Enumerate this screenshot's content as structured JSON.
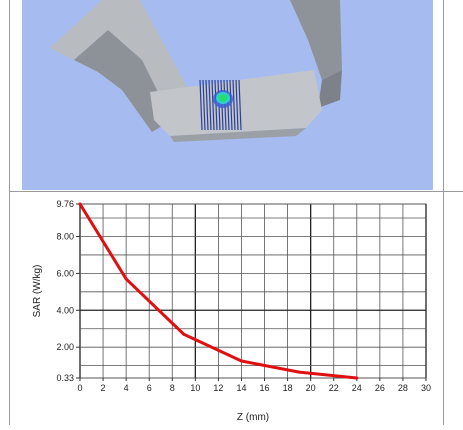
{
  "view3d": {
    "background": "#a6bbef",
    "phantom_color": "#a9adb3",
    "hotspot_colors": [
      "#22e066",
      "#2fd0c8",
      "#3a5bd6"
    ]
  },
  "chart_data": {
    "type": "line",
    "xlabel": "Z (mm)",
    "ylabel": "SAR (W/kg)",
    "xlim": [
      0,
      30
    ],
    "ylim": [
      0.33,
      9.76
    ],
    "x_ticks": [
      "0",
      "2",
      "4",
      "6",
      "8",
      "10",
      "12",
      "14",
      "16",
      "18",
      "20",
      "22",
      "24",
      "26",
      "28",
      "30"
    ],
    "y_ticks": [
      {
        "value": 9.76,
        "label": "9.76"
      },
      {
        "value": 8.0,
        "label": "8.00"
      },
      {
        "value": 6.0,
        "label": "6.00"
      },
      {
        "value": 4.0,
        "label": "4.00"
      },
      {
        "value": 2.0,
        "label": "2.00"
      },
      {
        "value": 0.33,
        "label": "0.33"
      }
    ],
    "grid": true,
    "series": [
      {
        "color": "#e01010",
        "x": [
          0,
          4,
          9,
          14,
          19,
          24
        ],
        "y": [
          9.76,
          5.7,
          2.7,
          1.25,
          0.65,
          0.33
        ]
      }
    ]
  }
}
